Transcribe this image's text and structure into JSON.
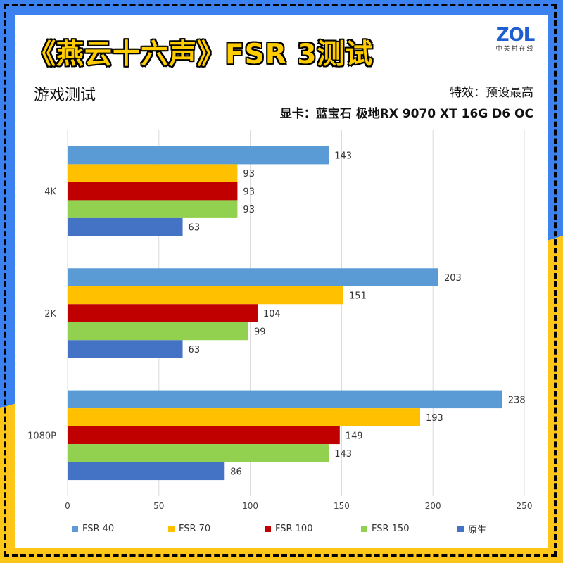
{
  "header": {
    "title": "《燕云十六声》FSR 3测试",
    "logo": "ZOL",
    "logo_sub": "中关村在线",
    "left_label": "游戏测试",
    "settings": "特效：预设最高",
    "gpu": "显卡：蓝宝石 极地RX 9070 XT 16G D6 OC"
  },
  "colors": {
    "frame_blue": "#3b82f0",
    "frame_yellow": "#ffc61a",
    "title_yellow": "#ffcc00"
  },
  "chart_data": {
    "type": "bar",
    "orientation": "horizontal",
    "categories": [
      "4K",
      "2K",
      "1080P"
    ],
    "series": [
      {
        "name": "FSR 40",
        "color": "#5b9bd5",
        "values": [
          143,
          203,
          238
        ]
      },
      {
        "name": "FSR 70",
        "color": "#ffc000",
        "values": [
          93,
          151,
          193
        ]
      },
      {
        "name": "FSR 100",
        "color": "#c00000",
        "values": [
          93,
          104,
          149
        ]
      },
      {
        "name": "FSR 150",
        "color": "#92d050",
        "values": [
          93,
          99,
          143
        ]
      },
      {
        "name": "原生",
        "color": "#4472c4",
        "values": [
          63,
          63,
          86
        ]
      }
    ],
    "xlim": [
      0,
      250
    ],
    "xticks": [
      "0",
      "50",
      "100",
      "150",
      "200",
      "250"
    ],
    "grid": "vertical",
    "legend": "bottom"
  }
}
